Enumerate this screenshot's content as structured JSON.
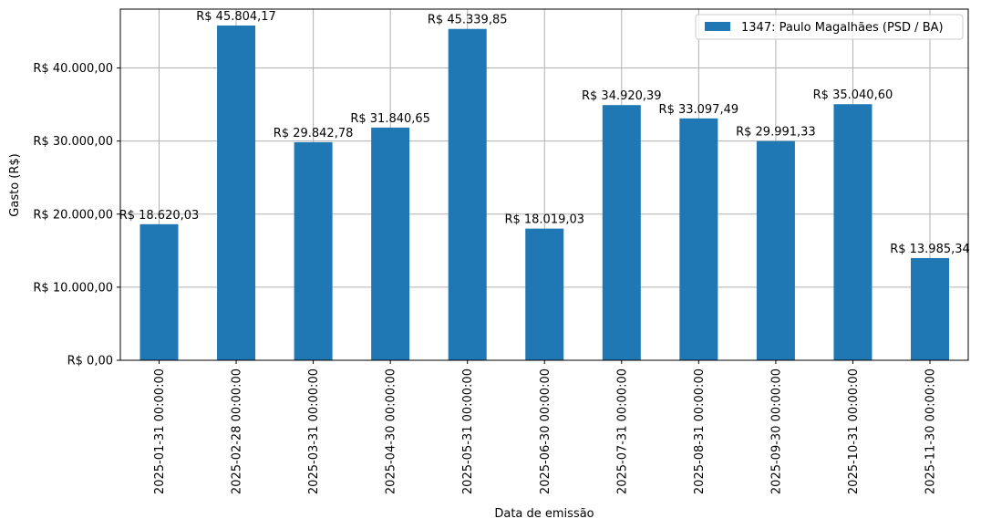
{
  "chart_data": {
    "type": "bar",
    "title": "",
    "xlabel": "Data de emissão",
    "ylabel": "Gasto (R$)",
    "ylim": [
      0,
      48000
    ],
    "grid": true,
    "legend_position": "upper right",
    "categories": [
      "2025-01-31 00:00:00",
      "2025-02-28 00:00:00",
      "2025-03-31 00:00:00",
      "2025-04-30 00:00:00",
      "2025-05-31 00:00:00",
      "2025-06-30 00:00:00",
      "2025-07-31 00:00:00",
      "2025-08-31 00:00:00",
      "2025-09-30 00:00:00",
      "2025-10-31 00:00:00",
      "2025-11-30 00:00:00"
    ],
    "series": [
      {
        "name": "1347: Paulo Magalhães (PSD / BA)",
        "color": "#1f77b4",
        "values": [
          18620.03,
          45804.17,
          29842.78,
          31840.65,
          45339.85,
          18019.03,
          34920.39,
          33097.49,
          29991.33,
          35040.6,
          13985.34
        ],
        "labels": [
          "R$ 18.620,03",
          "R$ 45.804,17",
          "R$ 29.842,78",
          "R$ 31.840,65",
          "R$ 45.339,85",
          "R$ 18.019,03",
          "R$ 34.920,39",
          "R$ 33.097,49",
          "R$ 29.991,33",
          "R$ 35.040,60",
          "R$ 13.985,34"
        ]
      }
    ],
    "yticks": [
      {
        "value": 0,
        "label": "R$ 0,00"
      },
      {
        "value": 10000,
        "label": "R$ 10.000,00"
      },
      {
        "value": 20000,
        "label": "R$ 20.000,00"
      },
      {
        "value": 30000,
        "label": "R$ 30.000,00"
      },
      {
        "value": 40000,
        "label": "R$ 40.000,00"
      }
    ]
  },
  "colors": {
    "bar": "#1f77b4",
    "grid": "#b0b0b0",
    "axis": "#000000",
    "legend_border": "#cccccc"
  }
}
